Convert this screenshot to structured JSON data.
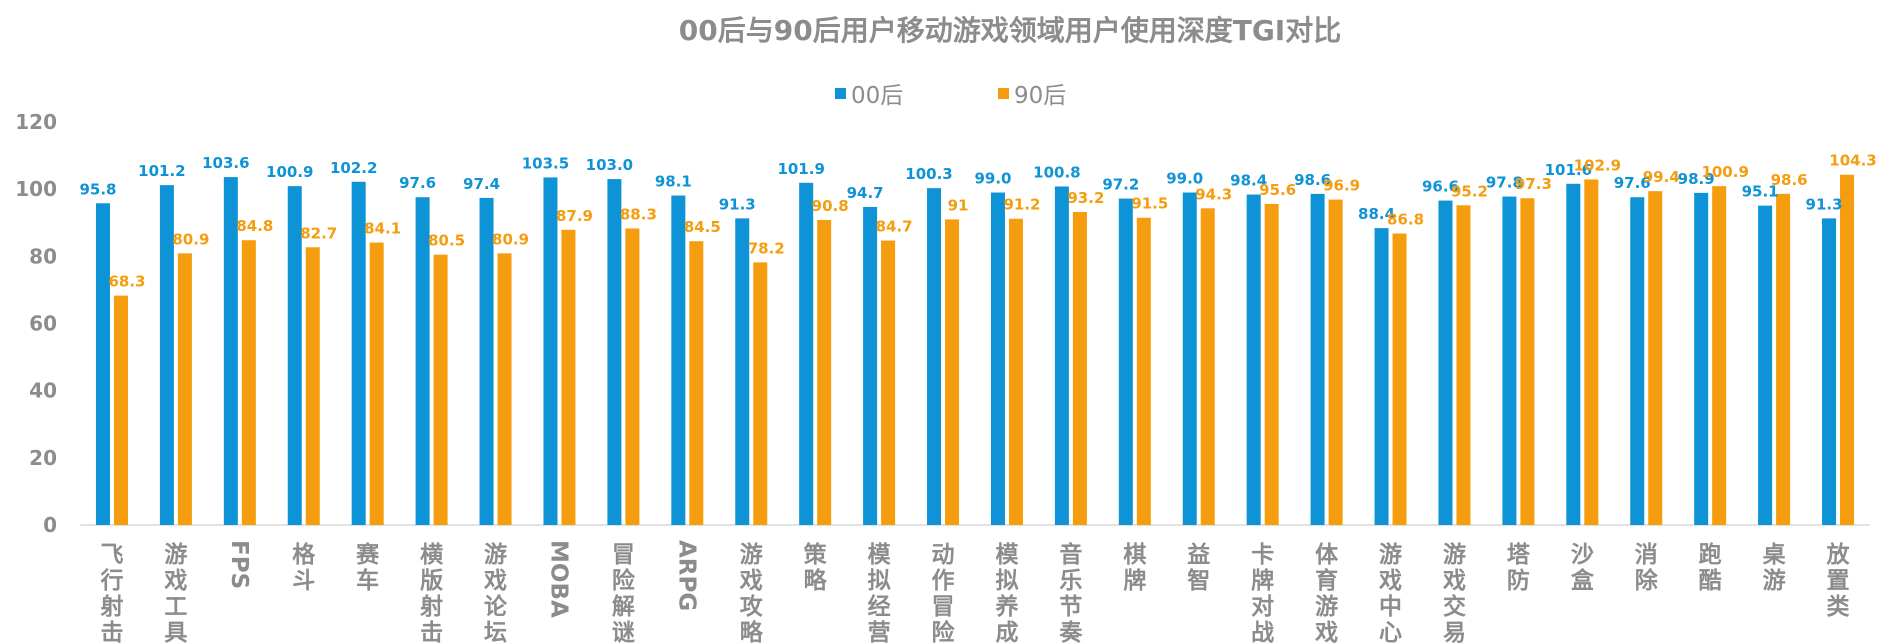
{
  "chart_data": {
    "type": "bar",
    "title": "00后与90后用户移动游戏领域用户使用深度TGI对比",
    "xlabel": "",
    "ylabel": "",
    "ylim": [
      0,
      120
    ],
    "yticks": [
      "0",
      "20",
      "40",
      "60",
      "80",
      "100",
      "120"
    ],
    "grid": false,
    "legend_position": "top-center",
    "categories": [
      "飞行射击",
      "游戏工具",
      "FPS",
      "格斗",
      "赛车",
      "横版射击",
      "游戏论坛",
      "MOBA",
      "冒险解谜",
      "ARPG",
      "游戏攻略",
      "策略",
      "模拟经营",
      "动作冒险",
      "模拟养成",
      "音乐节奏",
      "棋牌",
      "益智",
      "卡牌对战",
      "体育游戏",
      "游戏中心",
      "游戏交易",
      "塔防",
      "沙盒",
      "消除",
      "跑酷",
      "桌游",
      "放置类"
    ],
    "series": [
      {
        "name": "00后",
        "color": "#0d93d6",
        "values": [
          95.8,
          101.2,
          103.6,
          100.9,
          102.2,
          97.6,
          97.4,
          103.5,
          103.0,
          98.1,
          91.3,
          101.9,
          94.7,
          100.3,
          99.0,
          100.8,
          97.2,
          99.0,
          98.4,
          98.6,
          88.4,
          96.6,
          97.8,
          101.6,
          97.6,
          98.9,
          95.1,
          91.3
        ],
        "labels": [
          "95.8",
          "101.2",
          "103.6",
          "100.9",
          "102.2",
          "97.6",
          "97.4",
          "103.5",
          "103.0",
          "98.1",
          "91.3",
          "101.9",
          "94.7",
          "100.3",
          "99.0",
          "100.8",
          "97.2",
          "99.0",
          "98.4",
          "98.6",
          "88.4",
          "96.6",
          "97.8",
          "101.6",
          "97.6",
          "98.9",
          "95.1",
          "91.3"
        ]
      },
      {
        "name": "90后",
        "color": "#f59d0e",
        "values": [
          68.3,
          80.9,
          84.8,
          82.7,
          84.1,
          80.5,
          80.9,
          87.9,
          88.3,
          84.5,
          78.2,
          90.8,
          84.7,
          91,
          91.2,
          93.2,
          91.5,
          94.3,
          95.6,
          96.9,
          86.8,
          95.2,
          97.3,
          102.9,
          99.4,
          100.9,
          98.6,
          104.3
        ],
        "labels": [
          "68.3",
          "80.9",
          "84.8",
          "82.7",
          "84.1",
          "80.5",
          "80.9",
          "87.9",
          "88.3",
          "84.5",
          "78.2",
          "90.8",
          "84.7",
          "91",
          "91.2",
          "93.2",
          "91.5",
          "94.3",
          "95.6",
          "96.9",
          "86.8",
          "95.2",
          "97.3",
          "102.9",
          "99.4",
          "100.9",
          "98.6",
          "104.3"
        ]
      }
    ]
  }
}
